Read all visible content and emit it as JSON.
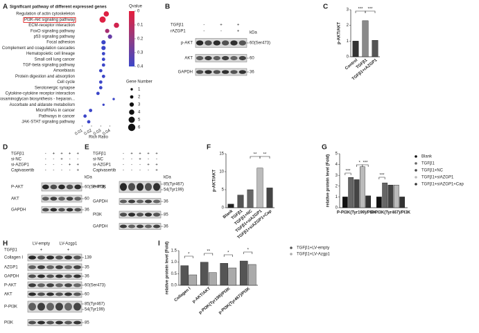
{
  "chart_data": [
    {
      "type": "dot",
      "panel": "A",
      "title": "Significant pathway of different expressed genes",
      "categories": [
        "Regulation of actin cytoskeleton",
        "PI3K-Akt signaling pathway",
        "ECM-receptor interaction",
        "FoxO signaling pathway",
        "p53 signaling pathway",
        "Focal adhesion",
        "Complement and coagulation cascades",
        "Hematopoietic cell lineage",
        "Small cell lung cancer",
        "TGF-beta signaling pathway",
        "Amoebiasis",
        "Protein digestion and absorption",
        "Cell cycle",
        "Serotonergic synapse",
        "Cytokine-cytokine receptor interaction",
        "Glycosaminoglycan biosynthesis - heparan...",
        "Ascorbate and aldarate metabolism",
        "MicroRNAs in cancer",
        "Pathways in cancer",
        "JAK-STAT signaling pathway"
      ],
      "x": [
        0.036,
        0.032,
        0.047,
        0.037,
        0.04,
        0.033,
        0.033,
        0.033,
        0.033,
        0.033,
        0.03,
        0.033,
        0.03,
        0.03,
        0.027,
        0.044,
        0.033,
        0.019,
        0.013,
        0.017
      ],
      "qvalue": [
        0.02,
        0.02,
        0.05,
        0.15,
        0.3,
        0.4,
        0.4,
        0.4,
        0.4,
        0.4,
        0.4,
        0.4,
        0.4,
        0.4,
        0.4,
        0.4,
        0.4,
        0.4,
        0.4,
        0.4
      ],
      "gene_number": [
        4,
        5,
        4,
        3,
        3,
        3,
        3,
        2,
        2,
        2,
        2,
        2,
        2,
        2,
        2,
        1,
        1,
        2,
        2,
        2
      ],
      "xlabel": "Rich Ratio",
      "xlim": [
        0.005,
        0.05
      ],
      "xticks": [
        0.01,
        0.02,
        0.03,
        0.04
      ],
      "qvalue_title": "Qvalue",
      "qlim": [
        0,
        0.4
      ],
      "qticks": [
        0,
        0.1,
        0.2,
        0.3,
        0.4
      ],
      "size_title": "Gene Number",
      "size_legend": [
        1,
        2,
        3,
        4,
        5,
        6
      ]
    },
    {
      "type": "bar",
      "panel": "C",
      "ylabel": "p-AKT/AKT",
      "categories": [
        "Control",
        "TGFβ1",
        "TGFβ1+rAZGP1"
      ],
      "values": [
        1.0,
        2.3,
        1.05
      ],
      "colors": [
        "#333333",
        "#8a8a8a",
        "#555555"
      ],
      "ylim": [
        0,
        3
      ],
      "yticks": [
        0,
        1,
        2,
        3
      ],
      "annotations": [
        "***",
        "***"
      ]
    },
    {
      "type": "bar",
      "panel": "F",
      "ylabel": "p-AKT/AKT",
      "categories": [
        "Blank",
        "TGFβ1",
        "TGFβ1+NC",
        "TGFβ1+siAZGP1",
        "TGFβ1+siAZGP1+Cap"
      ],
      "values": [
        1.0,
        3.5,
        5.0,
        11.0,
        5.5
      ],
      "colors": [
        "#222222",
        "#555555",
        "#666666",
        "#bbbbbb",
        "#444444"
      ],
      "ylim": [
        0,
        15
      ],
      "yticks": [
        0,
        5,
        10,
        15
      ],
      "annotations": [
        "**",
        "**"
      ]
    },
    {
      "type": "bar",
      "panel": "G",
      "ylabel": "relative protein level (Fold)",
      "categories": [
        "P-PI3K(Tyr199)/PI3K",
        "P-PI3K(Tyr467)/PI3K"
      ],
      "series": [
        {
          "name": "Blank",
          "color": "#111111",
          "values": [
            1.0,
            1.0
          ]
        },
        {
          "name": "TGFβ1",
          "color": "#666666",
          "values": [
            2.8,
            2.3
          ]
        },
        {
          "name": "TGFβ1+NC",
          "color": "#444444",
          "values": [
            2.6,
            2.1
          ]
        },
        {
          "name": "TGFβ1+siAZGP1",
          "color": "#bbbbbb",
          "values": [
            3.8,
            2.1
          ]
        },
        {
          "name": "TGFβ1+siAZGP1+Cap",
          "color": "#333333",
          "values": [
            1.1,
            1.0
          ]
        }
      ],
      "ylim": [
        0,
        5
      ],
      "yticks": [
        0,
        1,
        2,
        3,
        4,
        5
      ],
      "annotations": [
        "***",
        "*",
        "***",
        "***"
      ]
    },
    {
      "type": "bar",
      "panel": "I",
      "ylabel": "relative protein level (Fold)",
      "categories": [
        "Collagen Ⅰ",
        "p-AKT/AKT",
        "p-PI3K(Tyr199)/PI3K",
        "p-PI3K(Tyr467)/PI3K"
      ],
      "series": [
        {
          "name": "TGFβ1+LV-empty",
          "color": "#555555",
          "values": [
            0.85,
            1.0,
            0.95,
            1.05
          ]
        },
        {
          "name": "TGFβ1+LV-Azgp1",
          "color": "#aaaaaa",
          "values": [
            0.45,
            0.55,
            0.75,
            0.9
          ]
        }
      ],
      "ylim": [
        0,
        1.5
      ],
      "yticks": [
        {
          "value": 0,
          "label": "0.0"
        },
        {
          "value": 0.5,
          "label": "0.5"
        },
        {
          "value": 1,
          "label": "1.0"
        },
        {
          "value": 1.5,
          "label": "1.5"
        }
      ],
      "annotations": [
        "*",
        "**",
        "*",
        "*"
      ]
    }
  ],
  "blots": [
    {
      "panel": "B",
      "kda": "kDa",
      "conditions": [
        {
          "label": "TGFβ1",
          "signs": [
            "-",
            "+",
            "+"
          ]
        },
        {
          "label": "rAZGP1",
          "signs": [
            "-",
            "-",
            "+"
          ]
        }
      ],
      "rows": [
        {
          "label": "p-AKT",
          "markers": [
            "60(Ser473)"
          ]
        },
        {
          "label": "AKT",
          "markers": [
            "60"
          ]
        },
        {
          "label": "GAPDH",
          "markers": [
            "36"
          ]
        }
      ]
    },
    {
      "panel": "D",
      "kda": "kDa",
      "conditions": [
        {
          "label": "TGFβ1",
          "signs": [
            "-",
            "+",
            "+",
            "+",
            "+"
          ]
        },
        {
          "label": "si-NC",
          "signs": [
            "-",
            "-",
            "+",
            "-",
            "-"
          ]
        },
        {
          "label": "si-AZGP1",
          "signs": [
            "-",
            "-",
            "-",
            "+",
            "+"
          ]
        },
        {
          "label": "Capivasertib",
          "signs": [
            "-",
            "-",
            "-",
            "-",
            "+"
          ]
        }
      ],
      "rows": [
        {
          "label": "P-AKT",
          "markers": [
            "60(Ser473)"
          ]
        },
        {
          "label": "AKT",
          "markers": [
            "60"
          ]
        },
        {
          "label": "GAPDH",
          "markers": [
            "36"
          ]
        }
      ]
    },
    {
      "panel": "E",
      "kda": "kDa",
      "conditions": [
        {
          "label": "TGFβ1",
          "signs": [
            "-",
            "+",
            "+",
            "+",
            "+"
          ]
        },
        {
          "label": "si-NC",
          "signs": [
            "-",
            "-",
            "+",
            "-",
            "-"
          ]
        },
        {
          "label": "si-AZGP1",
          "signs": [
            "-",
            "-",
            "-",
            "+",
            "+"
          ]
        },
        {
          "label": "Capivasertib",
          "signs": [
            "-",
            "-",
            "-",
            "-",
            "+"
          ]
        }
      ],
      "rows": [
        {
          "label": "P-PI3K",
          "markers": [
            "85(Tyr467)",
            "54(Tyr199)"
          ]
        },
        {
          "label": "GAPDH",
          "markers": [
            "36"
          ]
        },
        {
          "label": "PI3K",
          "markers": [
            "85"
          ]
        },
        {
          "label": "GAPDH",
          "markers": [
            "36"
          ]
        }
      ]
    },
    {
      "panel": "H",
      "groups": [
        "LV-empty",
        "LV-Azgp1"
      ],
      "conditions": [
        {
          "label": "TGFβ1",
          "signs": [
            "+",
            "+"
          ]
        }
      ],
      "rows": [
        {
          "label": "Collagen I",
          "markers": [
            "139"
          ]
        },
        {
          "label": "AZGP1",
          "markers": [
            "35"
          ]
        },
        {
          "label": "GAPDH",
          "markers": [
            "36"
          ]
        },
        {
          "label": "P-AKT",
          "markers": [
            "60(Ser473)"
          ]
        },
        {
          "label": "AKT",
          "markers": [
            "60"
          ]
        },
        {
          "label": "P-PI3K",
          "markers": [
            "85(Tyr467)",
            "54(Tyr199)"
          ]
        },
        {
          "label": "PI3K",
          "markers": [
            "85"
          ]
        }
      ]
    }
  ]
}
